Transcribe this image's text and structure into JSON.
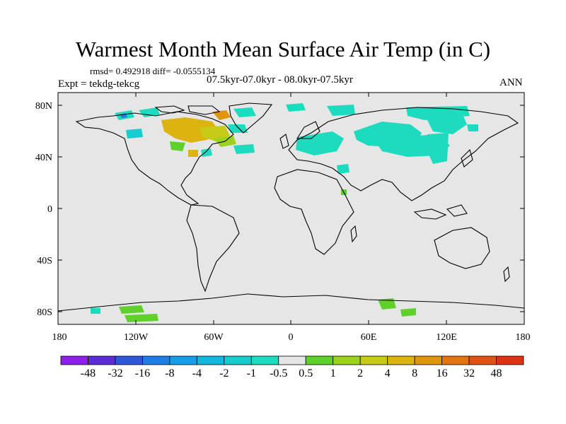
{
  "title": "Warmest Month Mean Surface Air Temp (in C)",
  "stats": "rmsd= 0.492918 diff= -0.0555134",
  "experiment": "Expt = tekdg-tekcg",
  "period": "07.5kyr-07.0kyr - 08.0kyr-07.5kyr",
  "season": "ANN",
  "lat_labels": [
    "80N",
    "40N",
    "0",
    "40S",
    "80S"
  ],
  "lon_labels": [
    "180",
    "120W",
    "60W",
    "0",
    "60E",
    "120E",
    "180"
  ],
  "colorbar": {
    "colors": [
      "#8f1ee6",
      "#5b2bd6",
      "#2f58d8",
      "#1f7de6",
      "#169ee8",
      "#12b8e0",
      "#16cccf",
      "#1ddbbf",
      "#e6e6e6",
      "#5fd12a",
      "#9bd21c",
      "#c7cb17",
      "#dcb30f",
      "#e0960c",
      "#e27510",
      "#e15314",
      "#dc3314"
    ],
    "labels": [
      "-48",
      "-32",
      "-16",
      "-8",
      "-4",
      "-2",
      "-1",
      "-0.5",
      "0.5",
      "1",
      "2",
      "4",
      "8",
      "16",
      "32",
      "48"
    ]
  },
  "colors": {
    "background": "#e6e6e6",
    "cool_anomaly": "#1ddbbf",
    "warm_anomaly": "#dcb30f",
    "coastline": "#000000"
  }
}
